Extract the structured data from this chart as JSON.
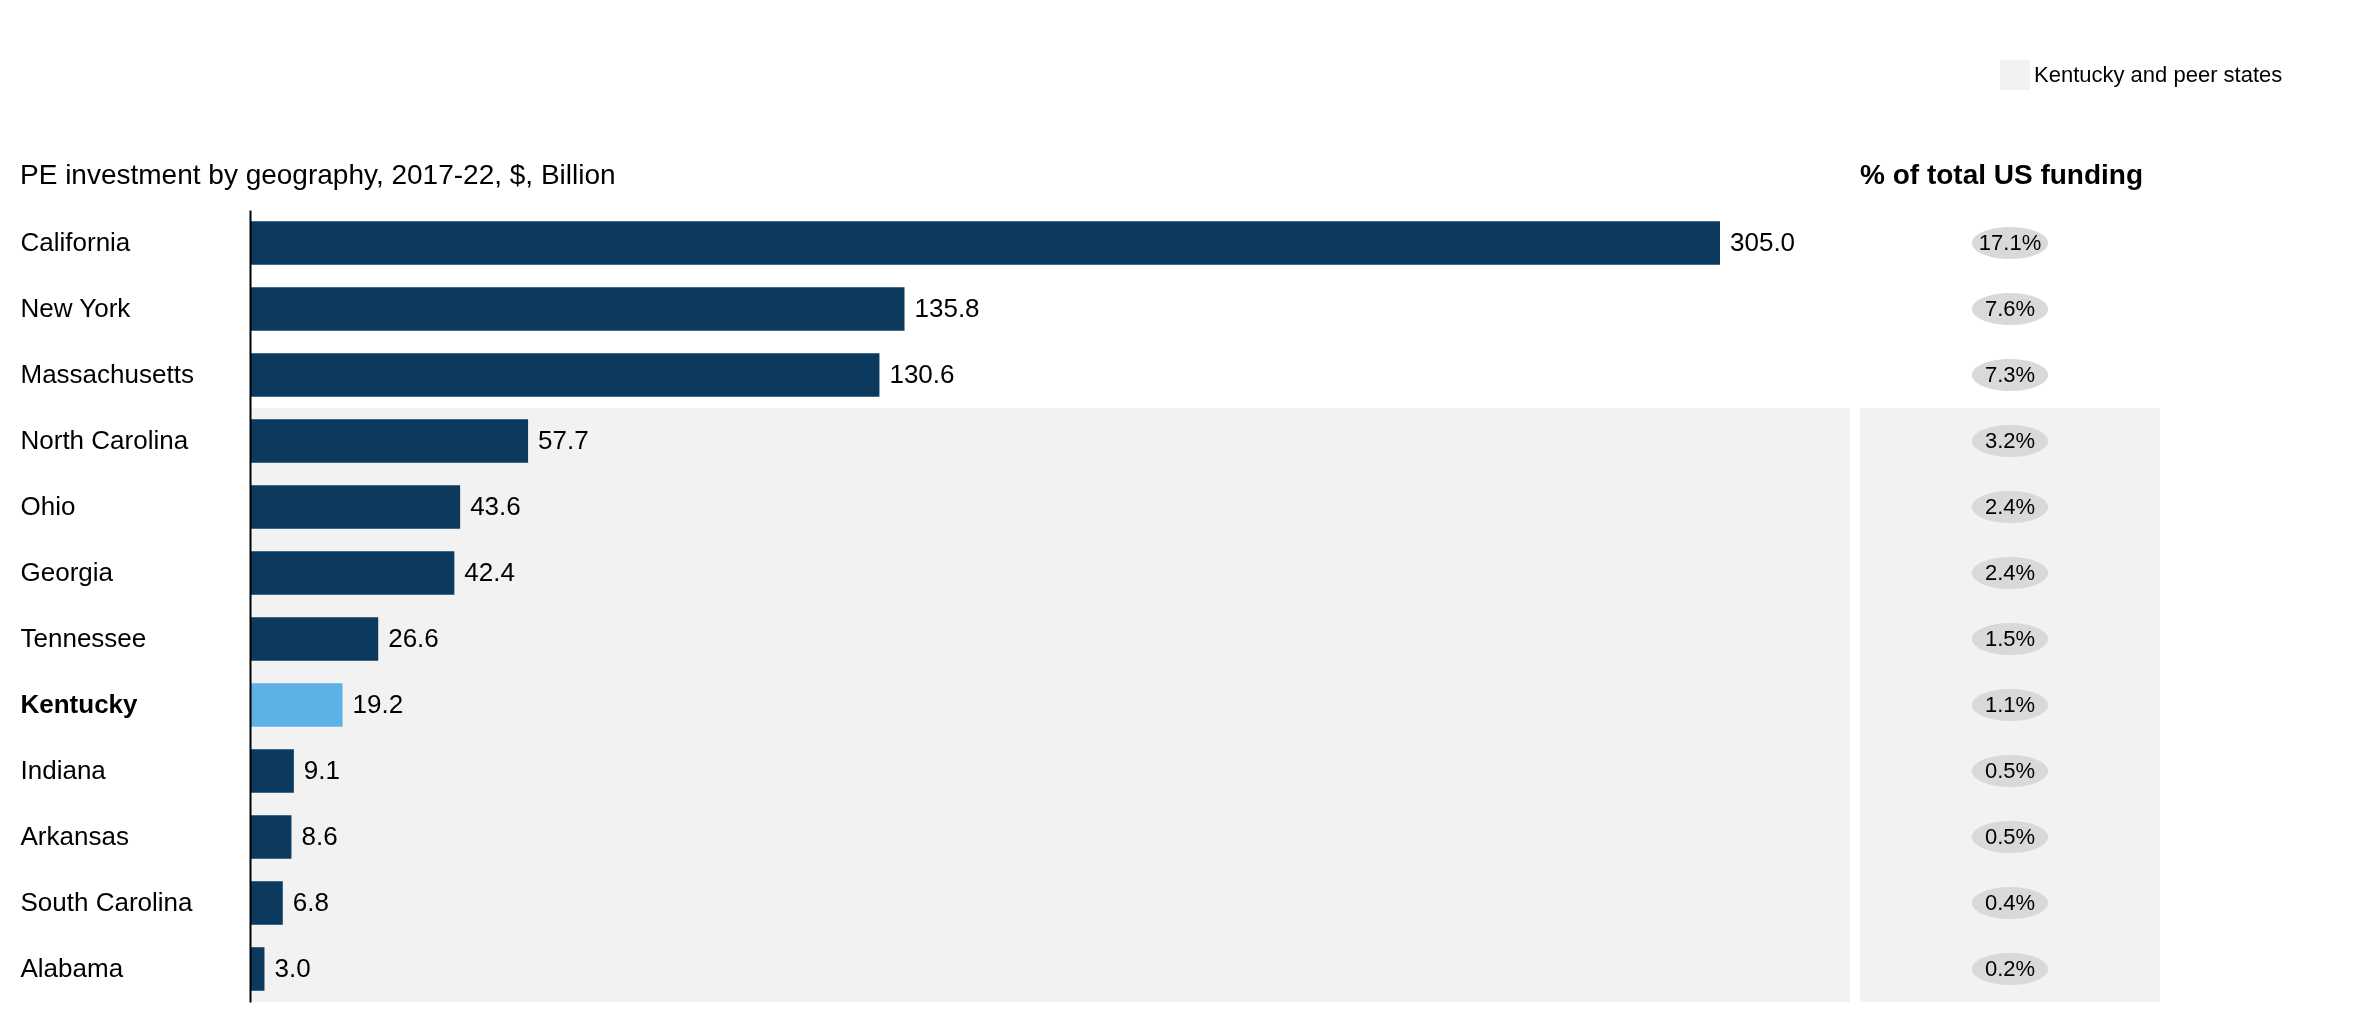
{
  "chart_data": {
    "type": "bar",
    "orientation": "horizontal",
    "title": "PE investment by geography, 2017-22, $, Billion",
    "categories": [
      "California",
      "New York",
      "Massachusetts",
      "North Carolina",
      "Ohio",
      "Georgia",
      "Tennessee",
      "Kentucky",
      "Indiana",
      "Arkansas",
      "South Carolina",
      "Alabama"
    ],
    "values": [
      305.0,
      135.8,
      130.6,
      57.7,
      43.6,
      42.4,
      26.6,
      19.2,
      9.1,
      8.6,
      6.8,
      3.0
    ],
    "value_labels": [
      "305.0",
      "135.8",
      "130.6",
      "57.7",
      "43.6",
      "42.4",
      "26.6",
      "19.2",
      "9.1",
      "8.6",
      "6.8",
      "3.0"
    ],
    "colors": [
      "#0b3a5e",
      "#0b3a5e",
      "#0b3a5e",
      "#0b3a5e",
      "#0b3a5e",
      "#0b3a5e",
      "#0b3a5e",
      "#5db1e4",
      "#0b3a5e",
      "#0b3a5e",
      "#0b3a5e",
      "#0b3a5e"
    ],
    "bands": [
      {
        "axis": "y",
        "from": "North Carolina",
        "to": "Alabama",
        "label": "Kentucky and peer states",
        "color": "#f2f2f2"
      }
    ],
    "legend": "top right",
    "tick_labels": "y",
    "annotations": [
      "% of total US funding",
      "17.1%",
      "7.6%",
      "7.3%",
      "3.2%",
      "2.4%",
      "2.4%",
      "1.5%",
      "1.1%",
      "0.5%",
      "0.5%",
      "0.4%",
      "0.2%"
    ]
  }
}
